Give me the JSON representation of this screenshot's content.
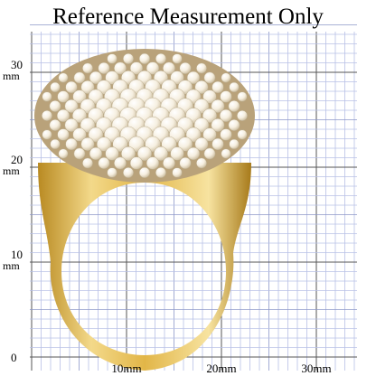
{
  "title": "Reference Measurement Only",
  "y_labels": [
    {
      "number": "30",
      "unit": "mm"
    },
    {
      "number": "20",
      "unit": "mm"
    },
    {
      "number": "10",
      "unit": "mm"
    }
  ],
  "origin": "0",
  "x_labels": [
    "10mm",
    "20mm",
    "30mm"
  ]
}
